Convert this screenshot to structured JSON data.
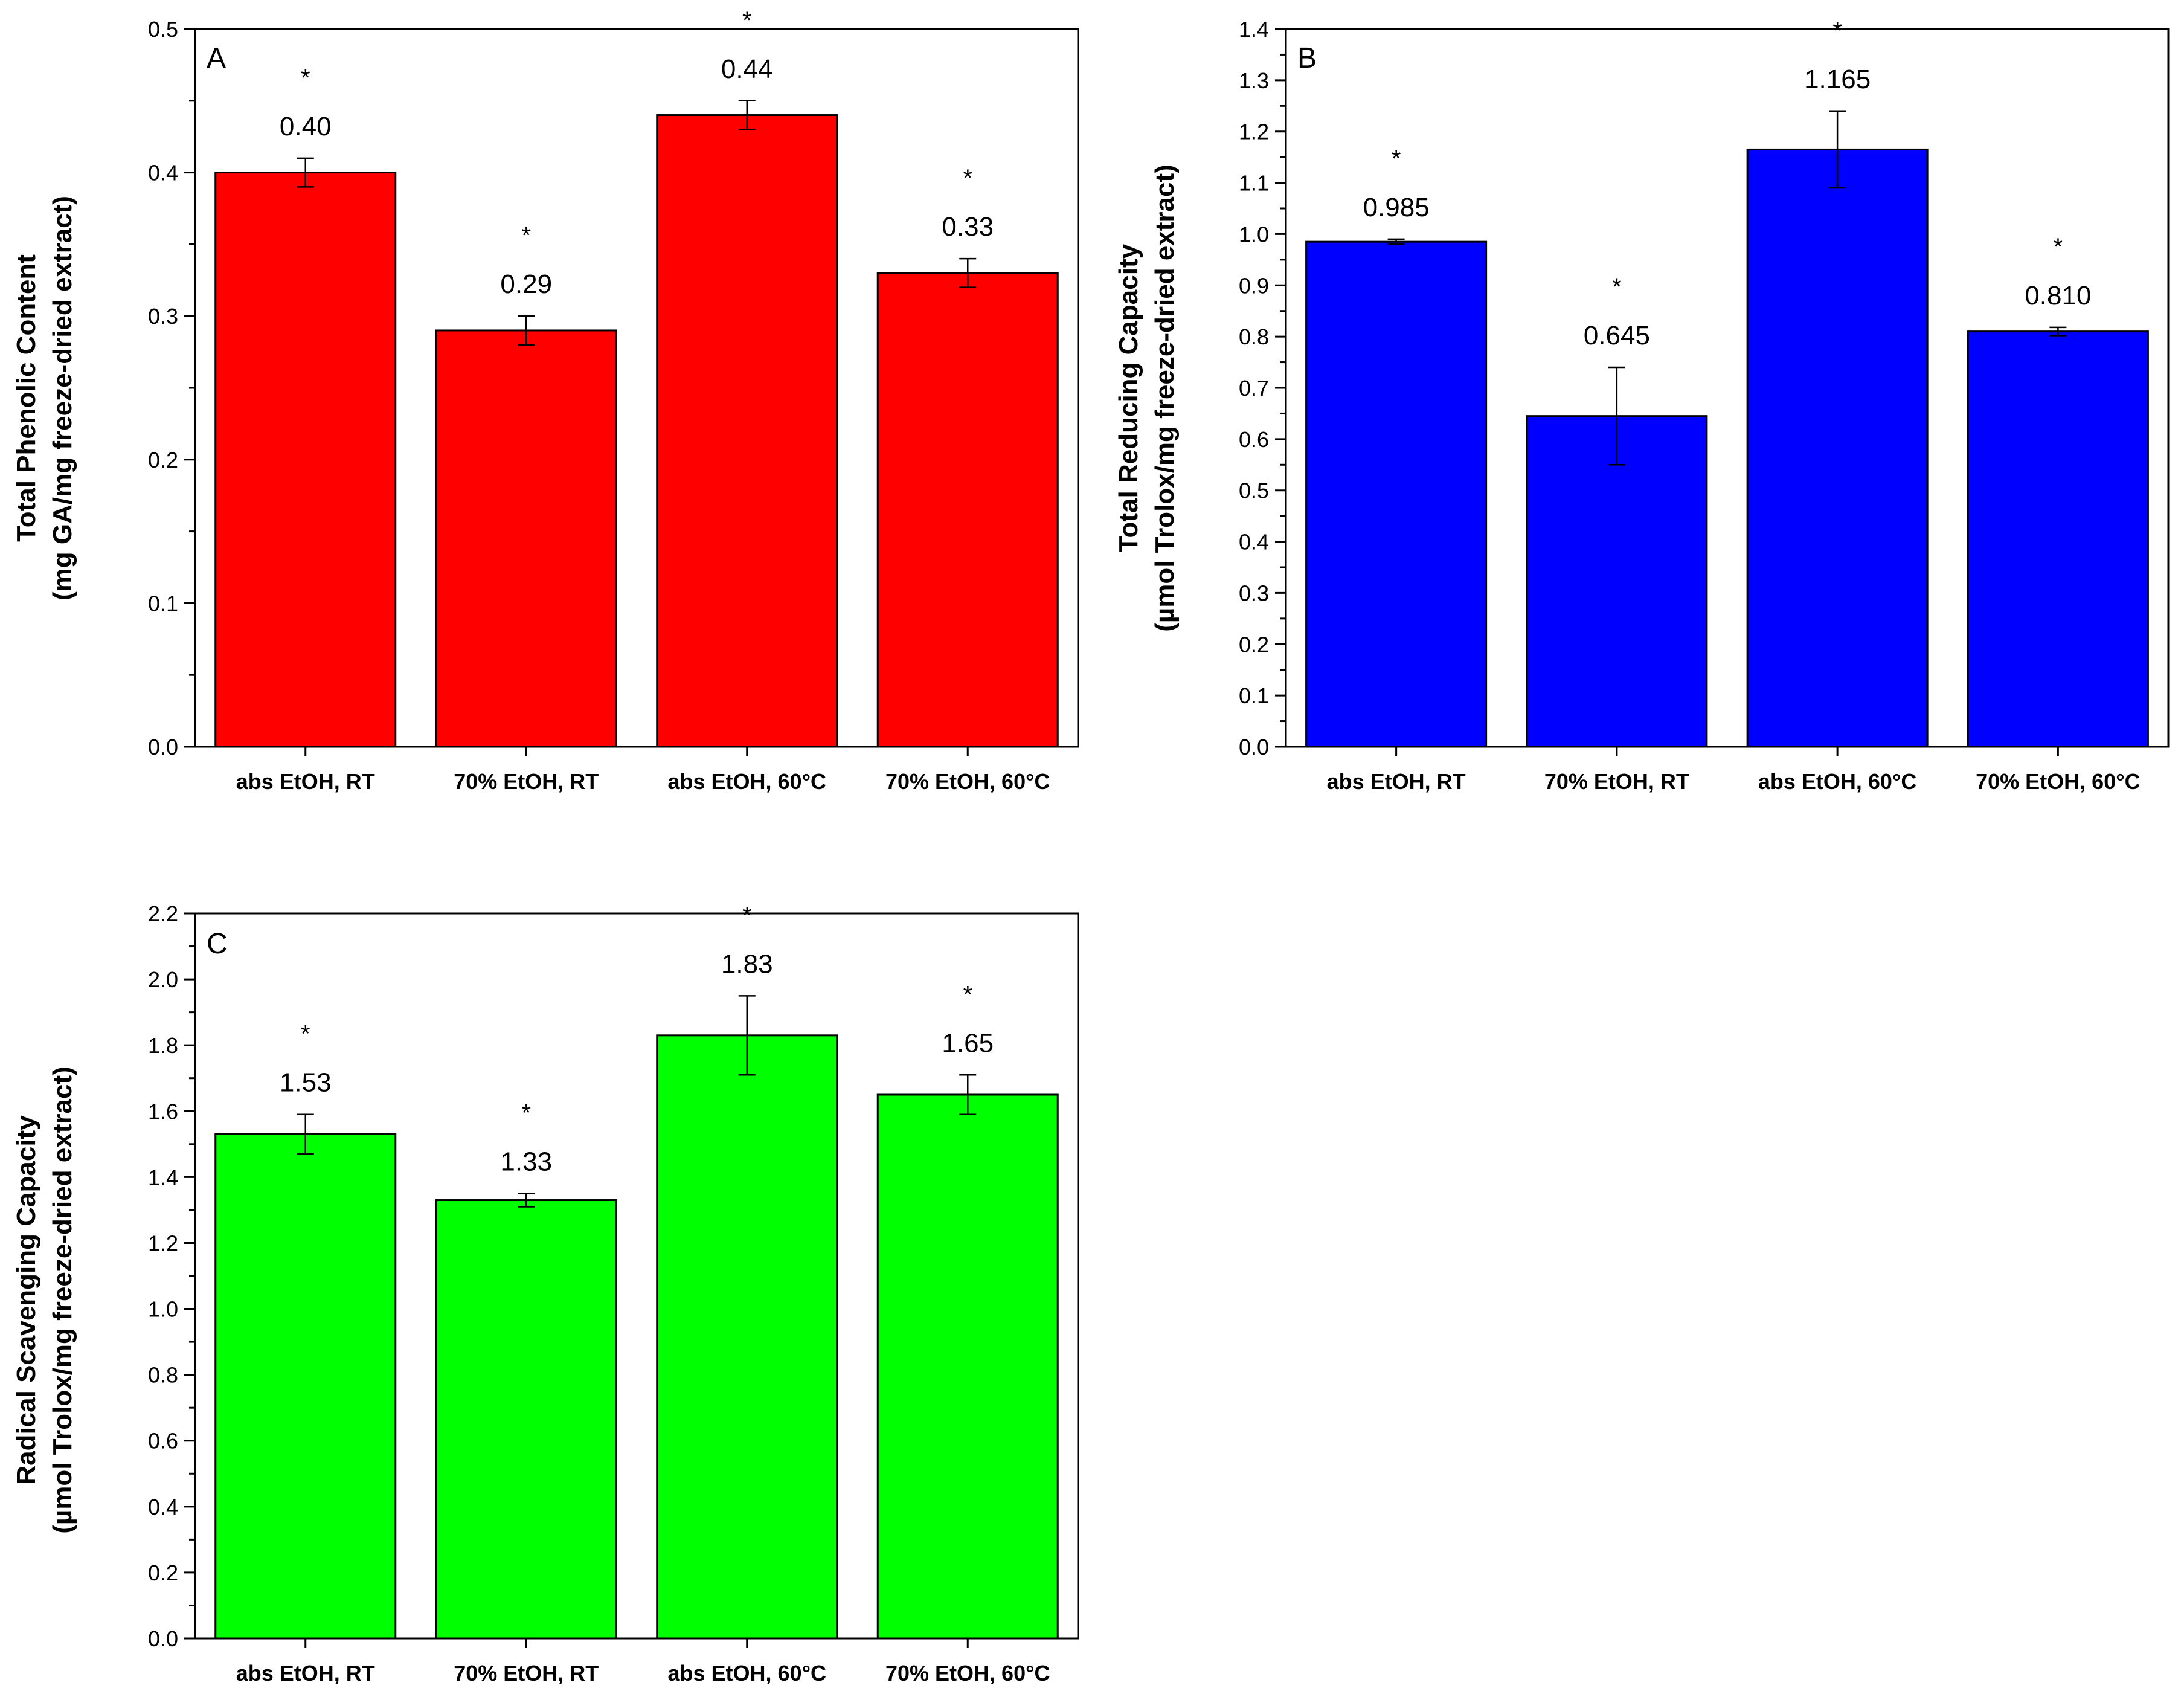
{
  "chart_data": [
    {
      "type": "bar",
      "panel": "A",
      "categories": [
        "abs EtOH, RT",
        "70% EtOH, RT",
        "abs EtOH, 60°C",
        "70% EtOH, 60°C"
      ],
      "values": [
        0.4,
        0.29,
        0.44,
        0.33
      ],
      "errors": [
        0.01,
        0.01,
        0.01,
        0.01
      ],
      "value_labels": [
        "0.40",
        "0.29",
        "0.44",
        "0.33"
      ],
      "significance": [
        "*",
        "*",
        "*",
        "*"
      ],
      "ylabel_lines": [
        "Total Phenolic Content",
        "(mg GA/mg freeze-dried extract)"
      ],
      "xlabel": "",
      "ylim": [
        0,
        0.5
      ],
      "yticks": [
        0.0,
        0.1,
        0.2,
        0.3,
        0.4,
        0.5
      ],
      "ytick_labels": [
        "0.0",
        "0.1",
        "0.2",
        "0.3",
        "0.4",
        "0.5"
      ],
      "bar_color": "#ff0000",
      "grid": false
    },
    {
      "type": "bar",
      "panel": "B",
      "categories": [
        "abs EtOH, RT",
        "70% EtOH, RT",
        "abs EtOH, 60°C",
        "70% EtOH, 60°C"
      ],
      "values": [
        0.985,
        0.645,
        1.165,
        0.81
      ],
      "errors": [
        0.005,
        0.095,
        0.075,
        0.008
      ],
      "value_labels": [
        "0.985",
        "0.645",
        "1.165",
        "0.810"
      ],
      "significance": [
        "*",
        "*",
        "*",
        "*"
      ],
      "ylabel_lines": [
        "Total Reducing Capacity",
        "(µmol Trolox/mg freeze-dried extract)"
      ],
      "xlabel": "",
      "ylim": [
        0,
        1.4
      ],
      "yticks": [
        0.0,
        0.1,
        0.2,
        0.3,
        0.4,
        0.5,
        0.6,
        0.7,
        0.8,
        0.9,
        1.0,
        1.1,
        1.2,
        1.3,
        1.4
      ],
      "ytick_labels": [
        "0.0",
        "0.1",
        "0.2",
        "0.3",
        "0.4",
        "0.5",
        "0.6",
        "0.7",
        "0.8",
        "0.9",
        "1.0",
        "1.1",
        "1.2",
        "1.3",
        "1.4"
      ],
      "bar_color": "#0000ff",
      "grid": false
    },
    {
      "type": "bar",
      "panel": "C",
      "categories": [
        "abs EtOH, RT",
        "70% EtOH, RT",
        "abs EtOH, 60°C",
        "70% EtOH, 60°C"
      ],
      "values": [
        1.53,
        1.33,
        1.83,
        1.65
      ],
      "errors": [
        0.06,
        0.02,
        0.12,
        0.06
      ],
      "value_labels": [
        "1.53",
        "1.33",
        "1.83",
        "1.65"
      ],
      "significance": [
        "*",
        "*",
        "*",
        "*"
      ],
      "ylabel_lines": [
        "Radical Scavenging Capacity",
        "(µmol Trolox/mg freeze-dried extract)"
      ],
      "xlabel": "",
      "ylim": [
        0,
        2.2
      ],
      "yticks": [
        0.0,
        0.2,
        0.4,
        0.6,
        0.8,
        1.0,
        1.2,
        1.4,
        1.6,
        1.8,
        2.0,
        2.2
      ],
      "ytick_labels": [
        "0.0",
        "0.2",
        "0.4",
        "0.6",
        "0.8",
        "1.0",
        "1.2",
        "1.4",
        "1.6",
        "1.8",
        "2.0",
        "2.2"
      ],
      "bar_color": "#00ff00",
      "grid": false
    }
  ]
}
